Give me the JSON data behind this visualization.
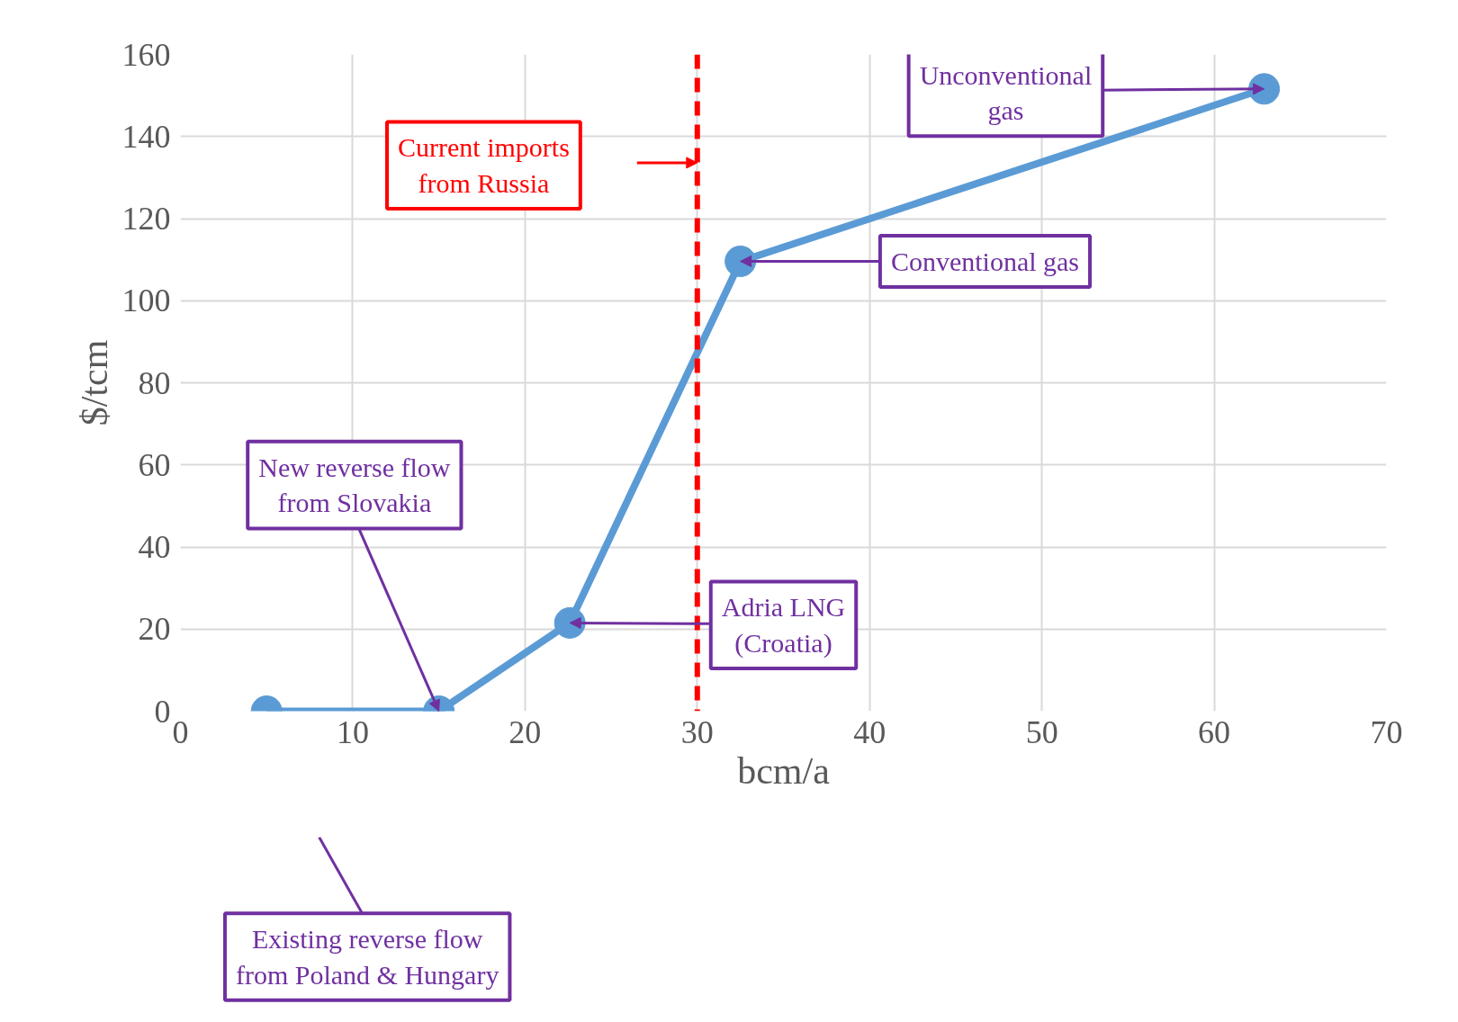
{
  "chart_data": {
    "type": "line",
    "xlabel": "bcm/a",
    "ylabel": "$/tcm",
    "x": [
      5,
      15,
      22.6,
      32.5,
      62.9
    ],
    "series": [
      {
        "color": "#5b9bd5",
        "values": [
          0,
          0,
          21.5,
          109.6,
          151.6
        ]
      }
    ],
    "xlim": [
      0,
      70
    ],
    "ylim": [
      0,
      160
    ],
    "xticks": [
      0,
      10,
      20,
      30,
      40,
      50,
      60,
      70
    ],
    "yticks": [
      0,
      20,
      40,
      60,
      80,
      100,
      120,
      140,
      160
    ],
    "grid": true,
    "marker": "circle",
    "line_style": "solid",
    "ref_lines": [
      {
        "axis": "x",
        "value": 30,
        "label": "Current imports\nfrom Russia",
        "color": "#ff0000",
        "line_style": "dashed"
      }
    ],
    "annotations": [
      "Existing reverse flow\nfrom Poland & Hungary",
      {
        "text": "New reverse flow\nfrom Slovakia",
        "x": 15,
        "y": 0
      },
      {
        "text": "Adria LNG\n(Croatia)",
        "x": 22.6,
        "y": 21.5
      },
      {
        "text": "Conventional gas",
        "x": 32.5,
        "y": 109.6
      },
      {
        "text": "Unconventional\ngas",
        "x": 62.9,
        "y": 151.6
      }
    ]
  }
}
